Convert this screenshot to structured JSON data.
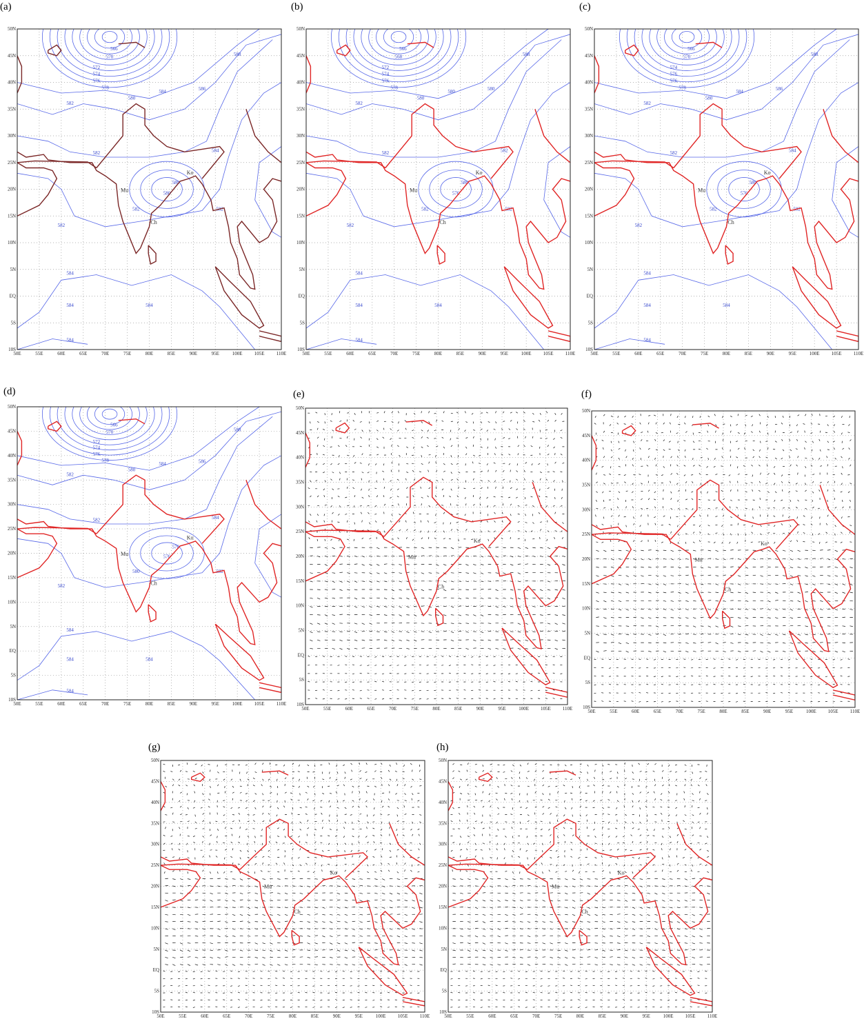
{
  "axes": {
    "xticks": [
      "50E",
      "55E",
      "60E",
      "65E",
      "70E",
      "75E",
      "80E",
      "85E",
      "90E",
      "95E",
      "100E",
      "105E",
      "110E"
    ],
    "yticks": [
      "50N",
      "45N",
      "40N",
      "35N",
      "30N",
      "25N",
      "20N",
      "15N",
      "10N",
      "5N",
      "EQ",
      "5S",
      "10S"
    ]
  },
  "panels": [
    {
      "label": "(a)",
      "contour_labels": [
        "566",
        "570",
        "572",
        "574",
        "576",
        "578",
        "580",
        "582",
        "584",
        "586",
        "588",
        "582",
        "584",
        "580",
        "580",
        "582",
        "582",
        "582",
        "584",
        "584",
        "584",
        "584"
      ],
      "places": [
        "Mu",
        "Ch",
        "Ko"
      ]
    },
    {
      "label": "(b)",
      "contour_labels": [
        "566",
        "568",
        "572",
        "574",
        "576",
        "578",
        "580",
        "582",
        "580",
        "580",
        "588",
        "582",
        "582",
        "580",
        "576",
        "582",
        "582",
        "582",
        "584",
        "584",
        "584",
        "584"
      ],
      "places": [
        "Mu",
        "Ch",
        "Ko"
      ]
    },
    {
      "label": "(c)",
      "contour_labels": [
        "566",
        "570",
        "574",
        "576",
        "576",
        "578",
        "580",
        "582",
        "584",
        "586",
        "588",
        "582",
        "584",
        "580",
        "576",
        "582",
        "582",
        "582",
        "584",
        "584",
        "584",
        "584"
      ],
      "places": [
        "Mu",
        "Ch",
        "Ko"
      ]
    },
    {
      "label": "(d)",
      "contour_labels": [
        "566",
        "570",
        "572",
        "574",
        "576",
        "578",
        "580",
        "582",
        "584",
        "586",
        "588",
        "582",
        "584",
        "576",
        "576",
        "580",
        "582",
        "582",
        "584",
        "584",
        "584",
        "584"
      ],
      "places": [
        "Mu",
        "Ch",
        "Ko"
      ]
    },
    {
      "label": "(e)",
      "places": [
        "Mu",
        "Ch",
        "Ko"
      ]
    },
    {
      "label": "(f)",
      "places": [
        "Mu",
        "Ch",
        "Ko"
      ]
    },
    {
      "label": "(g)",
      "places": [
        "Mu",
        "Ch",
        "Ko"
      ]
    },
    {
      "label": "(h)",
      "places": [
        "Mu",
        "Ch",
        "Ko"
      ]
    }
  ]
}
